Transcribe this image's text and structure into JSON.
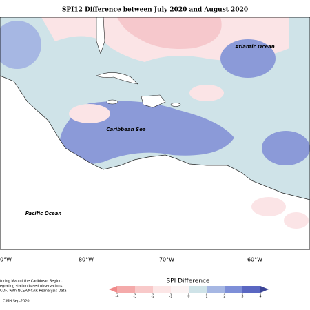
{
  "map": {
    "title": "SPI12 Difference between July 2020 and August 2020",
    "labels": [
      "Atlantic Ocean",
      "Caribbean Sea",
      "Pacific Ocean"
    ],
    "longitudes": [
      "0°W",
      "80°W",
      "70°W",
      "60°W"
    ],
    "notes": [
      "toring Map of the Caribbean Region.",
      "egrating station based observations,",
      "COF, with NCEP/NCAR Reanalysis Data"
    ],
    "credit": "CIMH Sep-2020"
  },
  "legend": {
    "title": "SPI Difference",
    "ticks": [
      -4,
      -3,
      -2,
      -1,
      0,
      1,
      2,
      3,
      4
    ],
    "colors": [
      "#f08a8a",
      "#f4aaaa",
      "#f8c9c9",
      "#fce6e6",
      "#fbf3f3",
      "#cfe3e8",
      "#a6b7e3",
      "#7e8fd8",
      "#5a67c2",
      "#3b4496"
    ]
  }
}
